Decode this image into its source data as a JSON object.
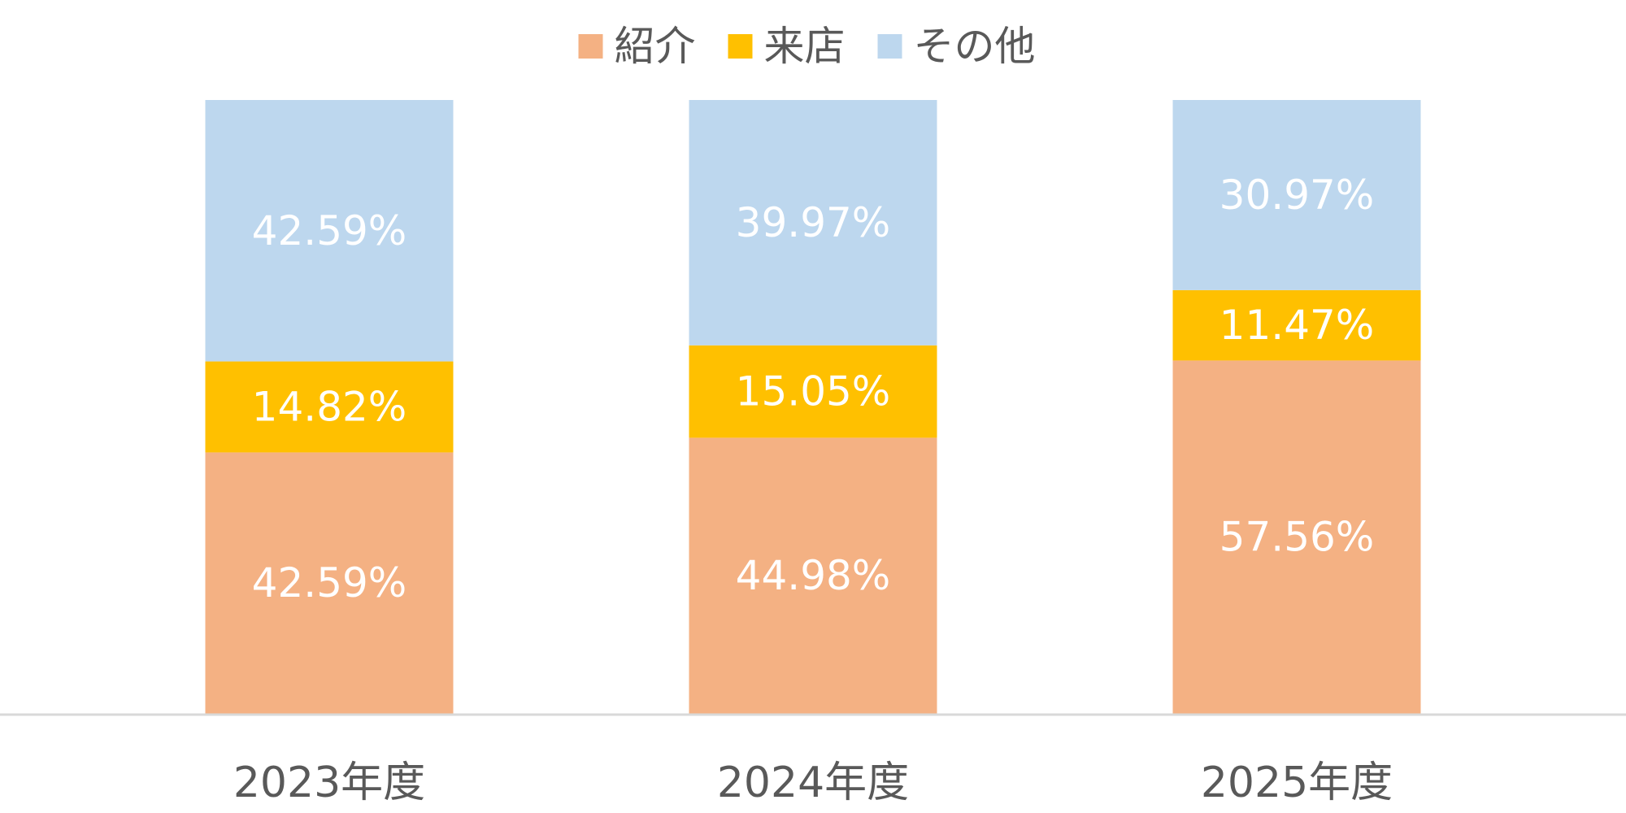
{
  "chart_data": {
    "type": "bar",
    "stacked": true,
    "categories": [
      "2023年度",
      "2024年度",
      "2025年度"
    ],
    "series": [
      {
        "name": "紹介",
        "color": "#F4B183",
        "values": [
          42.59,
          44.98,
          57.56
        ],
        "labels": [
          "42.59%",
          "44.98%",
          "57.56%"
        ]
      },
      {
        "name": "来店",
        "color": "#FFC000",
        "values": [
          14.82,
          15.05,
          11.47
        ],
        "labels": [
          "14.82%",
          "15.05%",
          "11.47%"
        ]
      },
      {
        "name": "その他",
        "color": "#BDD7EE",
        "values": [
          42.59,
          39.97,
          30.97
        ],
        "labels": [
          "42.59%",
          "39.97%",
          "30.97%"
        ]
      }
    ],
    "ylim": [
      0,
      100
    ],
    "legend": "top-center",
    "grid": false,
    "axis_color": "#D9D9D9",
    "label_color": "#FFFFFF",
    "text_color": "#595959"
  }
}
